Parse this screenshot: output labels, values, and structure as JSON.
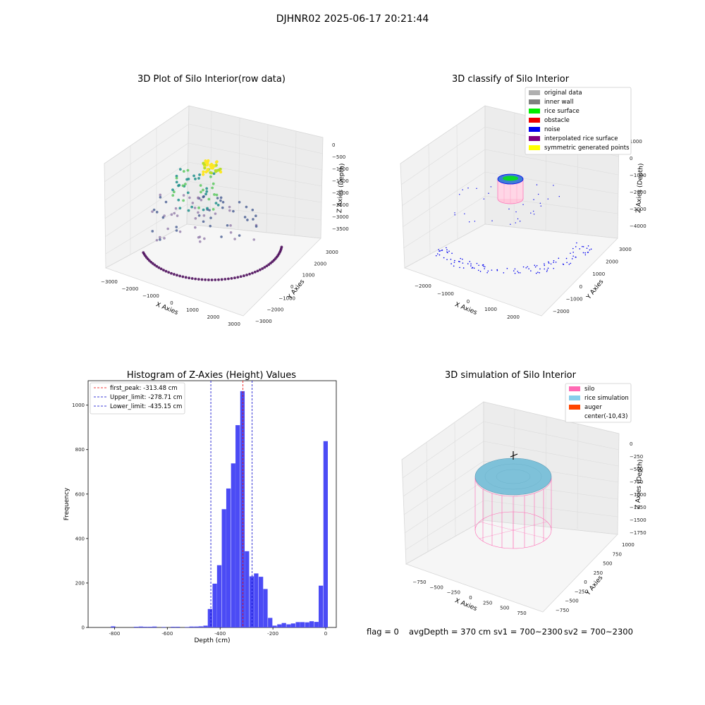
{
  "suptitle": "DJHNR02 2025-06-17 20:21:44",
  "panel_raw": {
    "title": "3D Plot of Silo Interior(row data)",
    "xlabel": "X Axies",
    "ylabel": "Y Axies",
    "zlabel": "Z Axies (Depth)",
    "x_ticks": [
      "−3000",
      "−2000",
      "−1000",
      "0",
      "1000",
      "2000",
      "3000"
    ],
    "y_ticks": [
      "−3000",
      "−2000",
      "−1000",
      "0",
      "1000",
      "2000",
      "3000"
    ],
    "z_ticks": [
      "0",
      "−500",
      "−1000",
      "−1500",
      "−2000",
      "−2500",
      "−3000",
      "−3500"
    ],
    "colors": {
      "low": "#440154",
      "mid": "#21918c",
      "high": "#fde725"
    }
  },
  "panel_classify": {
    "title": "3D classify of Silo Interior",
    "xlabel": "X Axies",
    "ylabel": "Y Axies",
    "zlabel": "Z Axies (Depth)",
    "x_ticks": [
      "−2000",
      "−1000",
      "0",
      "1000",
      "2000"
    ],
    "y_ticks": [
      "−2000",
      "−1000",
      "0",
      "1000",
      "2000",
      "3000"
    ],
    "z_ticks": [
      "1000",
      "0",
      "−1000",
      "−2000",
      "−3000",
      "−4000"
    ],
    "legend": [
      {
        "label": "original data",
        "color": "#b0b0b0"
      },
      {
        "label": "inner wall",
        "color": "#808080"
      },
      {
        "label": "rice surface",
        "color": "#00ee00"
      },
      {
        "label": "obstacle",
        "color": "#ee0000"
      },
      {
        "label": "noise",
        "color": "#0000ee"
      },
      {
        "label": "interpolated rice surface",
        "color": "#800080"
      },
      {
        "label": "symmetric generated points",
        "color": "#ffff00"
      }
    ]
  },
  "panel_sim": {
    "title": "3D simulation of Silo Interior",
    "xlabel": "X Axies",
    "ylabel": "Y Axies",
    "zlabel": "Z Axies (Depth)",
    "x_ticks": [
      "−750",
      "−500",
      "−250",
      "0",
      "250",
      "500",
      "750"
    ],
    "y_ticks": [
      "−750",
      "−500",
      "−250",
      "0",
      "250",
      "500",
      "750",
      "1000"
    ],
    "z_ticks": [
      "0",
      "−250",
      "−500",
      "−750",
      "−1000",
      "−1250",
      "−1500",
      "−1750"
    ],
    "legend": [
      {
        "label": "silo",
        "color": "#ff69b4"
      },
      {
        "label": "rice simulation",
        "color": "#87ceeb"
      },
      {
        "label": "auger",
        "color": "#ff4500"
      },
      {
        "label": "center(-10,43)",
        "color": "#ffffff"
      }
    ]
  },
  "footer": {
    "flag": "flag = 0",
    "avg": "avgDepth = 370 cm",
    "sv1": "sv1 = 700~2300",
    "sv2": "sv2 = 700~2300"
  },
  "chart_data": [
    {
      "type": "bar",
      "title": "Histogram of Z-Axies (Height) Values",
      "xlabel": "Depth (cm)",
      "ylabel": "Frequency",
      "xlim": [
        -900,
        40
      ],
      "ylim": [
        0,
        1110
      ],
      "xticks": [
        -800,
        -600,
        -400,
        -200,
        0
      ],
      "yticks": [
        0,
        200,
        400,
        600,
        800,
        1000
      ],
      "bin_width": 17.5,
      "bins": [
        [
          -805,
          5
        ],
        [
          -718,
          3
        ],
        [
          -700,
          4
        ],
        [
          -683,
          3
        ],
        [
          -665,
          3
        ],
        [
          -648,
          4
        ],
        [
          -613,
          2
        ],
        [
          -578,
          3
        ],
        [
          -560,
          3
        ],
        [
          -525,
          2
        ],
        [
          -508,
          4
        ],
        [
          -490,
          4
        ],
        [
          -473,
          5
        ],
        [
          -455,
          8
        ],
        [
          -438,
          83
        ],
        [
          -420,
          197
        ],
        [
          -403,
          280
        ],
        [
          -385,
          532
        ],
        [
          -368,
          625
        ],
        [
          -350,
          738
        ],
        [
          -333,
          910
        ],
        [
          -315,
          1063
        ],
        [
          -298,
          343
        ],
        [
          -280,
          230
        ],
        [
          -263,
          243
        ],
        [
          -245,
          228
        ],
        [
          -228,
          173
        ],
        [
          -210,
          43
        ],
        [
          -193,
          8
        ],
        [
          -175,
          14
        ],
        [
          -158,
          20
        ],
        [
          -140,
          14
        ],
        [
          -123,
          18
        ],
        [
          -105,
          24
        ],
        [
          -88,
          24
        ],
        [
          -70,
          23
        ],
        [
          -53,
          28
        ],
        [
          -35,
          25
        ],
        [
          -18,
          188
        ],
        [
          0,
          838
        ]
      ],
      "vlines": [
        {
          "label": "first_peak: -313.48 cm",
          "x": -313.48,
          "color": "#ee0000"
        },
        {
          "label": "Upper_limit: -278.71 cm",
          "x": -278.71,
          "color": "#0000cc"
        },
        {
          "label": "Lower_limit: -435.15 cm",
          "x": -435.15,
          "color": "#0000cc"
        }
      ],
      "bar_color": "#4b4bf5"
    }
  ]
}
